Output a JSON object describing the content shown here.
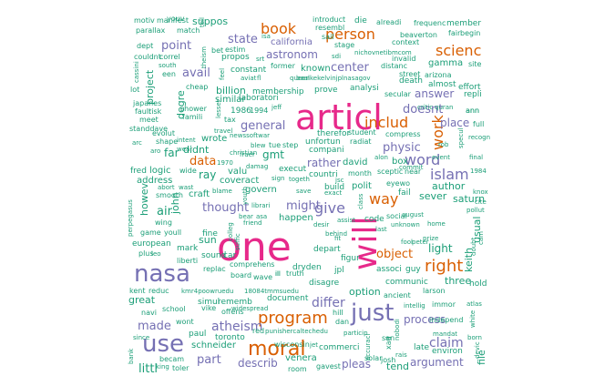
{
  "colors": {
    "teal": "#1b9e77",
    "orange": "#d95f02",
    "purple": "#7570b3",
    "pink": "#e7298a"
  },
  "words": [
    {
      "text": "articl",
      "color": "pink"
    },
    {
      "text": "one",
      "color": "pink"
    },
    {
      "text": "will",
      "color": "pink"
    },
    {
      "text": "just",
      "color": "purple"
    },
    {
      "text": "nasa",
      "color": "purple"
    },
    {
      "text": "use",
      "color": "purple"
    },
    {
      "text": "moral",
      "color": "orange"
    },
    {
      "text": "program",
      "color": "orange"
    },
    {
      "text": "book",
      "color": "orange"
    },
    {
      "text": "person",
      "color": "orange"
    },
    {
      "text": "scienc",
      "color": "orange"
    },
    {
      "text": "work",
      "color": "orange"
    },
    {
      "text": "includ",
      "color": "orange"
    },
    {
      "text": "right",
      "color": "orange"
    },
    {
      "text": "way",
      "color": "orange"
    },
    {
      "text": "object",
      "color": "orange"
    },
    {
      "text": "data",
      "color": "orange"
    },
    {
      "text": "atheism",
      "color": "purple"
    },
    {
      "text": "islam",
      "color": "purple"
    },
    {
      "text": "word",
      "color": "purple"
    },
    {
      "text": "claim",
      "color": "purple"
    },
    {
      "text": "differ",
      "color": "purple"
    },
    {
      "text": "give",
      "color": "purple"
    },
    {
      "text": "might",
      "color": "purple"
    },
    {
      "text": "general",
      "color": "purple"
    },
    {
      "text": "thought",
      "color": "purple"
    },
    {
      "text": "point",
      "color": "purple"
    },
    {
      "text": "state",
      "color": "purple"
    },
    {
      "text": "avail",
      "color": "purple"
    },
    {
      "text": "center",
      "color": "purple"
    },
    {
      "text": "astronom",
      "color": "purple"
    },
    {
      "text": "physic",
      "color": "purple"
    },
    {
      "text": "doesnt",
      "color": "purple"
    },
    {
      "text": "answer",
      "color": "purple"
    },
    {
      "text": "place",
      "color": "purple"
    },
    {
      "text": "made",
      "color": "purple"
    },
    {
      "text": "part",
      "color": "purple"
    },
    {
      "text": "process",
      "color": "purple"
    },
    {
      "text": "argument",
      "color": "purple"
    },
    {
      "text": "pleas",
      "color": "purple"
    },
    {
      "text": "describ",
      "color": "purple"
    },
    {
      "text": "rather",
      "color": "purple"
    },
    {
      "text": "california",
      "color": "purple"
    },
    {
      "text": "gamma",
      "color": "teal"
    },
    {
      "text": "project",
      "color": "teal"
    },
    {
      "text": "degre",
      "color": "teal"
    },
    {
      "text": "howev",
      "color": "teal"
    },
    {
      "text": "air",
      "color": "teal"
    },
    {
      "text": "sun",
      "color": "teal"
    },
    {
      "text": "john",
      "color": "teal"
    },
    {
      "text": "keith",
      "color": "teal"
    },
    {
      "text": "usual",
      "color": "teal"
    },
    {
      "text": "saturn",
      "color": "teal"
    },
    {
      "text": "three",
      "color": "teal"
    },
    {
      "text": "hold",
      "color": "teal"
    },
    {
      "text": "great",
      "color": "teal"
    },
    {
      "text": "option",
      "color": "teal"
    },
    {
      "text": "toronto",
      "color": "teal"
    },
    {
      "text": "schneider",
      "color": "teal"
    },
    {
      "text": "venera",
      "color": "teal"
    },
    {
      "text": "commerci",
      "color": "teal"
    },
    {
      "text": "tend",
      "color": "teal"
    },
    {
      "text": "file",
      "color": "teal"
    },
    {
      "text": "littl",
      "color": "teal"
    },
    {
      "text": "billion",
      "color": "teal"
    },
    {
      "text": "similar",
      "color": "teal"
    },
    {
      "text": "known",
      "color": "teal"
    },
    {
      "text": "prove",
      "color": "teal"
    },
    {
      "text": "membership",
      "color": "teal"
    },
    {
      "text": "analysi",
      "color": "teal"
    },
    {
      "text": "almost",
      "color": "teal"
    },
    {
      "text": "effort",
      "color": "teal"
    },
    {
      "text": "death",
      "color": "teal"
    },
    {
      "text": "site",
      "color": "teal"
    },
    {
      "text": "member",
      "color": "teal"
    },
    {
      "text": "fair",
      "color": "teal"
    },
    {
      "text": "begin",
      "color": "teal"
    },
    {
      "text": "far",
      "color": "teal"
    },
    {
      "text": "didnt",
      "color": "teal"
    },
    {
      "text": "wrote",
      "color": "teal"
    },
    {
      "text": "ray",
      "color": "teal"
    },
    {
      "text": "valu",
      "color": "teal"
    },
    {
      "text": "coveract",
      "color": "teal"
    },
    {
      "text": "govern",
      "color": "teal"
    },
    {
      "text": "happen",
      "color": "teal"
    },
    {
      "text": "build",
      "color": "teal"
    },
    {
      "text": "polit",
      "color": "teal"
    },
    {
      "text": "david",
      "color": "teal"
    },
    {
      "text": "box",
      "color": "teal"
    },
    {
      "text": "author",
      "color": "teal"
    },
    {
      "text": "sever",
      "color": "teal"
    },
    {
      "text": "light",
      "color": "teal"
    },
    {
      "text": "fred",
      "color": "teal"
    },
    {
      "text": "logic",
      "color": "teal"
    },
    {
      "text": "address",
      "color": "teal"
    },
    {
      "text": "craft",
      "color": "teal"
    },
    {
      "text": "european",
      "color": "teal"
    },
    {
      "text": "mark",
      "color": "teal"
    },
    {
      "text": "fine",
      "color": "teal"
    },
    {
      "text": "sound",
      "color": "teal"
    },
    {
      "text": "car",
      "color": "teal"
    },
    {
      "text": "dryden",
      "color": "teal"
    },
    {
      "text": "jpl",
      "color": "teal"
    },
    {
      "text": "depart",
      "color": "teal"
    },
    {
      "text": "figur",
      "color": "teal"
    },
    {
      "text": "disagre",
      "color": "teal"
    },
    {
      "text": "associ",
      "color": "teal"
    },
    {
      "text": "guy",
      "color": "teal"
    },
    {
      "text": "communic",
      "color": "teal"
    },
    {
      "text": "ancient",
      "color": "teal"
    },
    {
      "text": "larson",
      "color": "teal"
    },
    {
      "text": "independ",
      "color": "teal"
    },
    {
      "text": "environ",
      "color": "teal"
    },
    {
      "text": "late",
      "color": "teal"
    },
    {
      "text": "josh",
      "color": "teal"
    },
    {
      "text": "document",
      "color": "teal"
    },
    {
      "text": "wisconsin",
      "color": "teal"
    },
    {
      "text": "simul",
      "color": "teal"
    },
    {
      "text": "rememb",
      "color": "teal"
    },
    {
      "text": "wont",
      "color": "teal"
    },
    {
      "text": "paul",
      "color": "teal"
    },
    {
      "text": "kent",
      "color": "teal"
    },
    {
      "text": "reduc",
      "color": "teal"
    },
    {
      "text": "navi",
      "color": "teal"
    },
    {
      "text": "school",
      "color": "teal"
    },
    {
      "text": "king",
      "color": "teal"
    },
    {
      "text": "toler",
      "color": "teal"
    },
    {
      "text": "becam",
      "color": "teal"
    },
    {
      "text": "room",
      "color": "teal"
    },
    {
      "text": "gavest",
      "color": "teal"
    },
    {
      "text": "solar",
      "color": "teal"
    },
    {
      "text": "therefor",
      "color": "teal"
    },
    {
      "text": "unfortun",
      "color": "teal"
    },
    {
      "text": "compani",
      "color": "teal"
    },
    {
      "text": "execut",
      "color": "teal"
    },
    {
      "text": "countri",
      "color": "teal"
    },
    {
      "text": "month",
      "color": "teal"
    },
    {
      "text": "sceptic",
      "color": "teal"
    },
    {
      "text": "near",
      "color": "teal"
    },
    {
      "text": "radiat",
      "color": "teal"
    },
    {
      "text": "student",
      "color": "teal"
    },
    {
      "text": "compress",
      "color": "teal"
    },
    {
      "text": "critic",
      "color": "teal"
    },
    {
      "text": "quran",
      "color": "teal"
    },
    {
      "text": "repli",
      "color": "teal"
    },
    {
      "text": "ann",
      "color": "teal"
    },
    {
      "text": "full",
      "color": "teal"
    },
    {
      "text": "secular",
      "color": "teal"
    },
    {
      "text": "street",
      "color": "teal"
    },
    {
      "text": "arizona",
      "color": "teal"
    },
    {
      "text": "distanc",
      "color": "teal"
    },
    {
      "text": "invalid",
      "color": "teal"
    },
    {
      "text": "beaverton",
      "color": "teal"
    },
    {
      "text": "context",
      "color": "teal"
    },
    {
      "text": "frequenc",
      "color": "teal"
    },
    {
      "text": "alreadi",
      "color": "teal"
    },
    {
      "text": "introduct",
      "color": "teal"
    },
    {
      "text": "die",
      "color": "teal"
    },
    {
      "text": "resembl",
      "color": "teal"
    },
    {
      "text": "sail",
      "color": "teal"
    },
    {
      "text": "stage",
      "color": "teal"
    },
    {
      "text": "suppos",
      "color": "teal"
    },
    {
      "text": "youv",
      "color": "teal"
    },
    {
      "text": "motiv",
      "color": "teal"
    },
    {
      "text": "manifest",
      "color": "teal"
    },
    {
      "text": "parallax",
      "color": "teal"
    },
    {
      "text": "match",
      "color": "teal"
    },
    {
      "text": "dept",
      "color": "teal"
    },
    {
      "text": "couldnt",
      "color": "teal"
    },
    {
      "text": "correl",
      "color": "teal"
    },
    {
      "text": "cassini",
      "color": "teal"
    },
    {
      "text": "south",
      "color": "teal"
    },
    {
      "text": "een",
      "color": "teal"
    },
    {
      "text": "lot",
      "color": "teal"
    },
    {
      "text": "japanes",
      "color": "teal"
    },
    {
      "text": "fault",
      "color": "teal"
    },
    {
      "text": "risk",
      "color": "teal"
    },
    {
      "text": "meet",
      "color": "teal"
    },
    {
      "text": "standdave",
      "color": "teal"
    },
    {
      "text": "arc",
      "color": "teal"
    },
    {
      "text": "shape",
      "color": "teal"
    },
    {
      "text": "evolut",
      "color": "teal"
    },
    {
      "text": "intent",
      "color": "teal"
    },
    {
      "text": "famili",
      "color": "teal"
    },
    {
      "text": "shower",
      "color": "teal"
    },
    {
      "text": "laboratori",
      "color": "teal"
    },
    {
      "text": "constant",
      "color": "teal"
    },
    {
      "text": "propos",
      "color": "teal"
    },
    {
      "text": "former",
      "color": "teal"
    },
    {
      "text": "aviat",
      "color": "teal"
    },
    {
      "text": "fl",
      "color": "teal"
    },
    {
      "text": "queen",
      "color": "teal"
    },
    {
      "text": "baalkekelvinjplnasagov",
      "color": "teal"
    },
    {
      "text": "nichovnetibmcom",
      "color": "teal"
    },
    {
      "text": "cheap",
      "color": "teal"
    },
    {
      "text": "1986",
      "color": "teal"
    },
    {
      "text": "1994",
      "color": "teal"
    },
    {
      "text": "jeff",
      "color": "teal"
    },
    {
      "text": "tax",
      "color": "teal"
    },
    {
      "text": "travel",
      "color": "teal"
    },
    {
      "text": "newssoftwar",
      "color": "teal"
    },
    {
      "text": "blew",
      "color": "teal"
    },
    {
      "text": "tue",
      "color": "teal"
    },
    {
      "text": "step",
      "color": "teal"
    },
    {
      "text": "gmt",
      "color": "teal"
    },
    {
      "text": "christian",
      "color": "teal"
    },
    {
      "text": "fraer",
      "color": "teal"
    },
    {
      "text": "wear",
      "color": "teal"
    },
    {
      "text": "aro",
      "color": "teal"
    },
    {
      "text": "1970",
      "color": "teal"
    },
    {
      "text": "damag",
      "color": "teal"
    },
    {
      "text": "blame",
      "color": "teal"
    },
    {
      "text": "abort",
      "color": "teal"
    },
    {
      "text": "wast",
      "color": "teal"
    },
    {
      "text": "smooth",
      "color": "teal"
    },
    {
      "text": "wing",
      "color": "teal"
    },
    {
      "text": "game",
      "color": "teal"
    },
    {
      "text": "youll",
      "color": "teal"
    },
    {
      "text": "perpegasus",
      "color": "teal"
    },
    {
      "text": "plus",
      "color": "teal"
    },
    {
      "text": "leo",
      "color": "teal"
    },
    {
      "text": "liberti",
      "color": "teal"
    },
    {
      "text": "replac",
      "color": "teal"
    },
    {
      "text": "board",
      "color": "teal"
    },
    {
      "text": "wave",
      "color": "teal"
    },
    {
      "text": "comprehens",
      "color": "teal"
    },
    {
      "text": "kmr4poowruedu",
      "color": "teal"
    },
    {
      "text": "18084tmmsuedu",
      "color": "teal"
    },
    {
      "text": "truth",
      "color": "teal"
    },
    {
      "text": "ill",
      "color": "teal"
    },
    {
      "text": "hill",
      "color": "teal"
    },
    {
      "text": "dan",
      "color": "teal"
    },
    {
      "text": "punishercaltechedu",
      "color": "teal"
    },
    {
      "text": "red",
      "color": "teal"
    },
    {
      "text": "offens",
      "color": "teal"
    },
    {
      "text": "vike",
      "color": "teal"
    },
    {
      "text": "widespread",
      "color": "teal"
    },
    {
      "text": "particip",
      "color": "teal"
    },
    {
      "text": "accuraci",
      "color": "teal"
    },
    {
      "text": "xad",
      "color": "teal"
    },
    {
      "text": "rais",
      "color": "teal"
    },
    {
      "text": "intellig",
      "color": "teal"
    },
    {
      "text": "immor",
      "color": "teal"
    },
    {
      "text": "mandat",
      "color": "teal"
    },
    {
      "text": "atlas",
      "color": "teal"
    },
    {
      "text": "white",
      "color": "teal"
    },
    {
      "text": "born",
      "color": "teal"
    },
    {
      "text": "devic",
      "color": "teal"
    },
    {
      "text": "bank",
      "color": "teal"
    },
    {
      "text": "since",
      "color": "teal"
    },
    {
      "text": "bear",
      "color": "teal"
    },
    {
      "text": "asa",
      "color": "teal"
    },
    {
      "text": "librari",
      "color": "teal"
    },
    {
      "text": "friend",
      "color": "teal"
    },
    {
      "text": "colleg",
      "color": "teal"
    },
    {
      "text": "suffic",
      "color": "teal"
    },
    {
      "text": "youth",
      "color": "teal"
    },
    {
      "text": "eyewo",
      "color": "teal"
    },
    {
      "text": "fail",
      "color": "teal"
    },
    {
      "text": "social",
      "color": "teal"
    },
    {
      "text": "august",
      "color": "teal"
    },
    {
      "text": "unknown",
      "color": "teal"
    },
    {
      "text": "home",
      "color": "teal"
    },
    {
      "text": "prize",
      "color": "teal"
    },
    {
      "text": "fool",
      "color": "teal"
    },
    {
      "text": "peter",
      "color": "teal"
    },
    {
      "text": "doubt",
      "color": "teal"
    },
    {
      "text": "cam",
      "color": "teal"
    },
    {
      "text": "pollut",
      "color": "teal"
    },
    {
      "text": "knox",
      "color": "teal"
    },
    {
      "text": "cite",
      "color": "teal"
    },
    {
      "text": "final",
      "color": "teal"
    },
    {
      "text": "recogn",
      "color": "teal"
    },
    {
      "text": "specul",
      "color": "teal"
    },
    {
      "text": "rob",
      "color": "teal"
    },
    {
      "text": "event",
      "color": "teal"
    },
    {
      "text": "1984",
      "color": "teal"
    },
    {
      "text": "alon",
      "color": "teal"
    },
    {
      "text": "commit",
      "color": "teal"
    },
    {
      "text": "exact",
      "color": "teal"
    },
    {
      "text": "save",
      "color": "teal"
    },
    {
      "text": "togeth",
      "color": "teal"
    },
    {
      "text": "sign",
      "color": "teal"
    },
    {
      "text": "jsc",
      "color": "teal"
    },
    {
      "text": "class",
      "color": "teal"
    },
    {
      "text": "assist",
      "color": "teal"
    },
    {
      "text": "desir",
      "color": "teal"
    },
    {
      "text": "behind",
      "color": "teal"
    },
    {
      "text": "fit",
      "color": "teal"
    },
    {
      "text": "last",
      "color": "teal"
    },
    {
      "text": "code",
      "color": "teal"
    },
    {
      "text": "bet",
      "color": "teal"
    },
    {
      "text": "estim",
      "color": "teal"
    },
    {
      "text": "srt",
      "color": "teal"
    },
    {
      "text": "feel",
      "color": "teal"
    },
    {
      "text": "theism",
      "color": "teal"
    },
    {
      "text": "isa",
      "color": "teal"
    },
    {
      "text": "tell",
      "color": "teal"
    },
    {
      "text": "sdi",
      "color": "teal"
    },
    {
      "text": "lesser",
      "color": "teal"
    },
    {
      "text": "wide",
      "color": "teal"
    },
    {
      "text": "ann",
      "color": "teal"
    },
    {
      "text": "san",
      "color": "teal"
    },
    {
      "text": "nobodi",
      "color": "teal"
    },
    {
      "text": "ill",
      "color": "teal"
    },
    {
      "text": "jet",
      "color": "teal"
    }
  ]
}
